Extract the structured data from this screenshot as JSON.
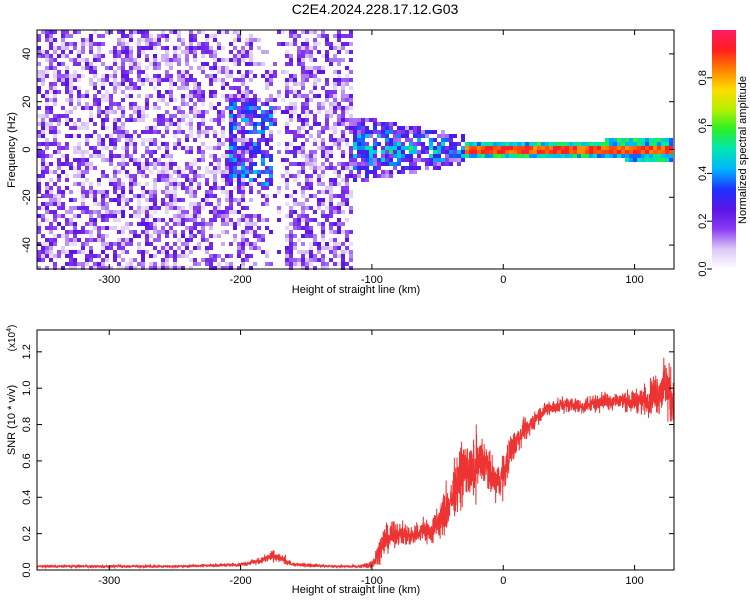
{
  "figure_title": "C2E4.2024.228.17.12.G03",
  "chart_data": [
    {
      "type": "heatmap",
      "title": "C2E4.2024.228.17.12.G03",
      "xlabel": "Height of straight line (km)",
      "ylabel": "Frequency (Hz)",
      "xlim": [
        -355,
        130
      ],
      "ylim": [
        -50,
        50
      ],
      "xticks": [
        -300,
        -200,
        -100,
        0,
        100
      ],
      "yticks": [
        -40,
        -20,
        0,
        20,
        40
      ],
      "colorbar": {
        "label": "Normalized spectral amplitude",
        "range": [
          0,
          1
        ],
        "ticks": [
          "0.0",
          "0.2",
          "0.4",
          "0.6",
          "0.8"
        ],
        "colors": [
          "#ffffff",
          "#dcc8f8",
          "#8a3cf2",
          "#5a14e6",
          "#1e32ff",
          "#00b4ff",
          "#00e6b4",
          "#28f028",
          "#b4f000",
          "#ffdc00",
          "#ff8200",
          "#ff1e1e",
          "#ff1e64"
        ]
      },
      "regions": [
        {
          "x_range": [
            -355,
            -115
          ],
          "y_range": [
            -50,
            50
          ],
          "description": "broadband noise",
          "typical_amplitude": 0.15
        },
        {
          "x_range": [
            -210,
            -175
          ],
          "y_range": [
            -15,
            20
          ],
          "description": "weak feature",
          "typical_amplitude": 0.3
        },
        {
          "x_range": [
            -115,
            -30
          ],
          "y_range": [
            -12,
            12
          ],
          "description": "emerging signal",
          "typical_amplitude": 0.4
        },
        {
          "x_range": [
            -30,
            130
          ],
          "y_range": [
            -3,
            3
          ],
          "description": "carrier line at 0 Hz",
          "typical_amplitude": 0.95
        }
      ]
    },
    {
      "type": "line",
      "xlabel": "Height of straight line (km)",
      "ylabel": "SNR (10 * v/v)",
      "y_multiplier": "(x10",
      "y_multiplier_exp": "4",
      "y_multiplier_close": ")",
      "xlim": [
        -355,
        130
      ],
      "ylim": [
        0,
        1.32
      ],
      "xticks": [
        -300,
        -200,
        -100,
        0,
        100
      ],
      "yticks": [
        "0.0",
        "0.2",
        "0.4",
        "0.6",
        "0.8",
        "1.0",
        "1.2"
      ],
      "color": "#ee3333",
      "series": [
        {
          "x": [
            -355,
            -300,
            -250,
            -200,
            -185,
            -175,
            -160,
            -130,
            -110,
            -100,
            -95,
            -90,
            -80,
            -70,
            -60,
            -55,
            -50,
            -45,
            -40,
            -35,
            -30,
            -25,
            -20,
            -15,
            -10,
            -5,
            0,
            5,
            10,
            15,
            20,
            25,
            30,
            35,
            40,
            50,
            60,
            70,
            80,
            90,
            100,
            110,
            115,
            120,
            125,
            130
          ],
          "y": [
            0.02,
            0.02,
            0.02,
            0.03,
            0.05,
            0.08,
            0.03,
            0.02,
            0.02,
            0.03,
            0.1,
            0.17,
            0.2,
            0.19,
            0.22,
            0.2,
            0.26,
            0.3,
            0.38,
            0.48,
            0.56,
            0.52,
            0.58,
            0.6,
            0.52,
            0.48,
            0.52,
            0.65,
            0.7,
            0.77,
            0.78,
            0.84,
            0.87,
            0.89,
            0.9,
            0.91,
            0.9,
            0.92,
            0.93,
            0.93,
            0.93,
            0.94,
            0.97,
            0.99,
            1.0,
            0.9
          ],
          "noise": [
            0.005,
            0.006,
            0.006,
            0.008,
            0.015,
            0.025,
            0.01,
            0.005,
            0.006,
            0.02,
            0.05,
            0.07,
            0.05,
            0.05,
            0.06,
            0.06,
            0.08,
            0.1,
            0.11,
            0.13,
            0.14,
            0.13,
            0.13,
            0.11,
            0.1,
            0.09,
            0.09,
            0.08,
            0.07,
            0.05,
            0.04,
            0.04,
            0.035,
            0.035,
            0.035,
            0.035,
            0.035,
            0.04,
            0.04,
            0.045,
            0.05,
            0.07,
            0.09,
            0.11,
            0.13,
            0.13
          ]
        }
      ]
    }
  ]
}
